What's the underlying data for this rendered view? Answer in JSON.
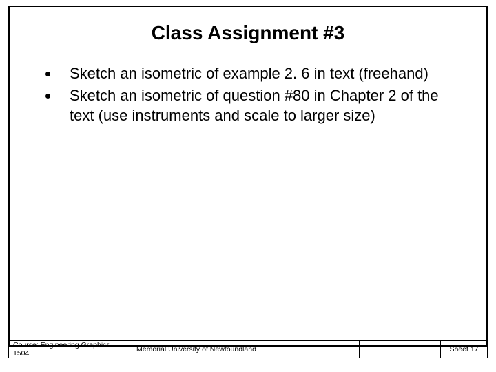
{
  "colors": {
    "background": "#ffffff",
    "border": "#000000",
    "text": "#000000",
    "bullet": "#000000"
  },
  "typography": {
    "title_fontsize": 28,
    "title_weight": "bold",
    "body_fontsize": 22,
    "footer_fontsize": 10.5,
    "font_family": "Arial"
  },
  "title": "Class Assignment #3",
  "bullets": [
    "Sketch an isometric of example 2. 6 in text (freehand)",
    "Sketch an isometric of question #80 in Chapter 2 of the text (use instruments and scale to larger size)"
  ],
  "footer": {
    "course": "Course: Engineering Graphics 1504",
    "institution": "Memorial University of Newfoundland",
    "blank": "",
    "sheet": "Sheet 17"
  },
  "layout": {
    "slide_width": 720,
    "slide_height": 540,
    "frame_border_width": 2,
    "footer_cell_widths": [
      180,
      330,
      118,
      68
    ]
  }
}
